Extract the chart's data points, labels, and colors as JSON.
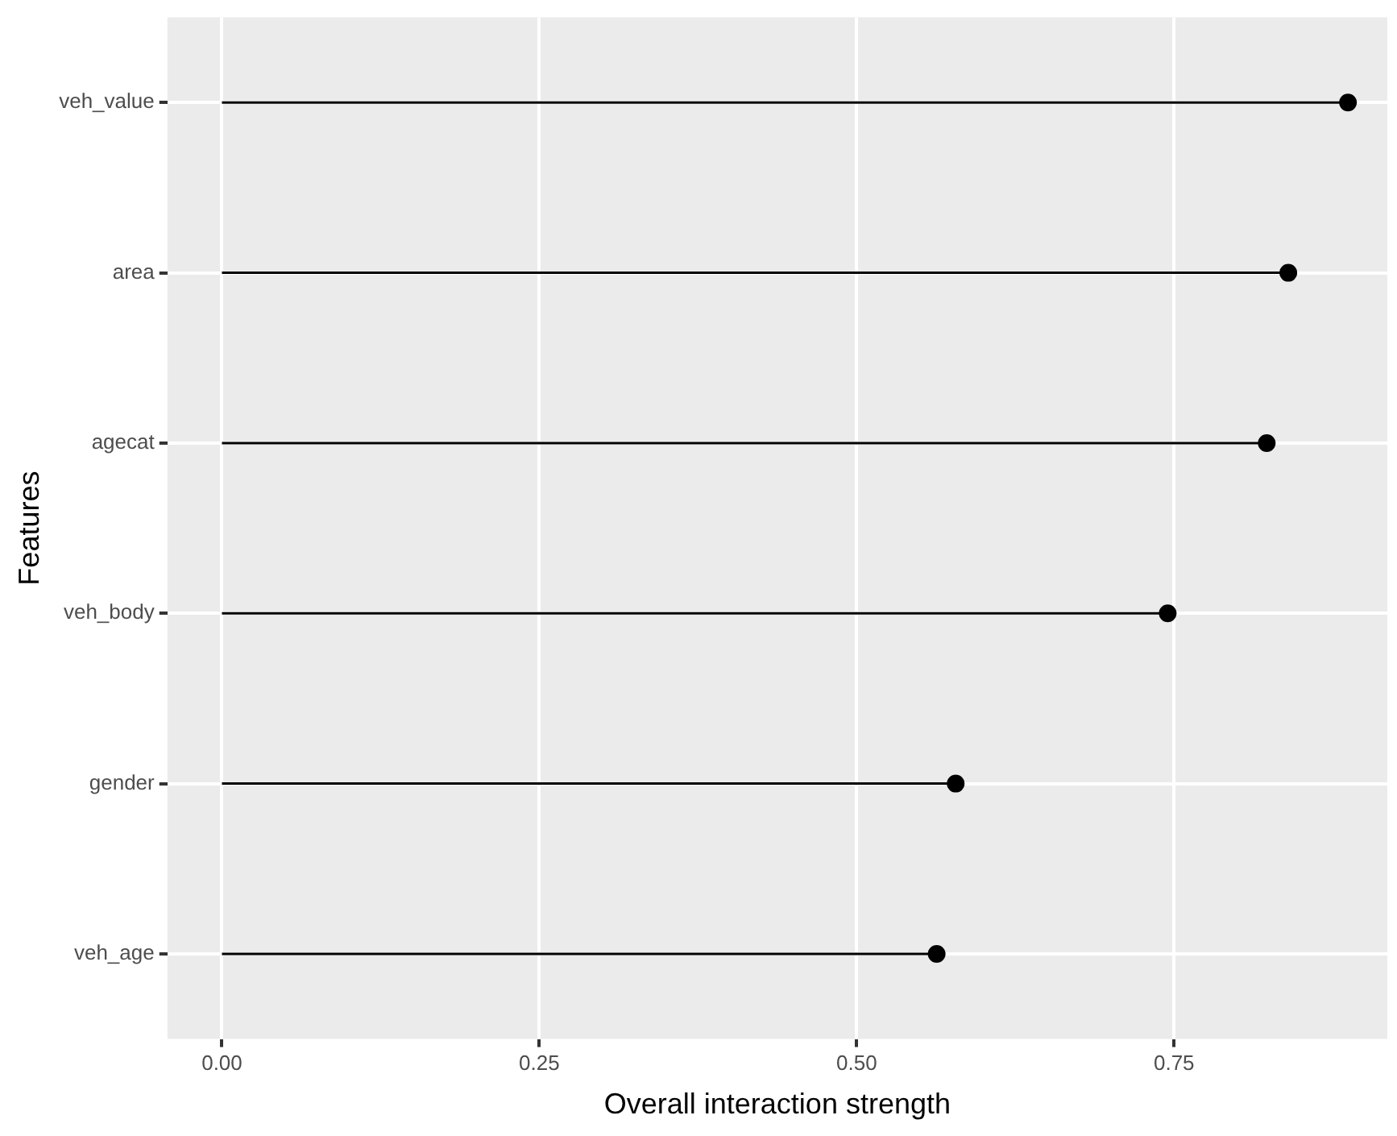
{
  "chart_data": {
    "type": "lollipop",
    "orientation": "horizontal",
    "xlabel": "Overall interaction strength",
    "ylabel": "Features",
    "categories": [
      "veh_value",
      "area",
      "agecat",
      "veh_body",
      "gender",
      "veh_age"
    ],
    "values": [
      0.887,
      0.84,
      0.823,
      0.745,
      0.578,
      0.563
    ],
    "color": "#000000",
    "marker": "circle",
    "xlim": [
      -0.043,
      0.918
    ],
    "xticks": [
      {
        "value": 0,
        "label": "0.00"
      },
      {
        "value": 0.25,
        "label": "0.25"
      },
      {
        "value": 0.5,
        "label": "0.50"
      },
      {
        "value": 0.75,
        "label": "0.75"
      }
    ],
    "grid": true,
    "legend": false
  }
}
